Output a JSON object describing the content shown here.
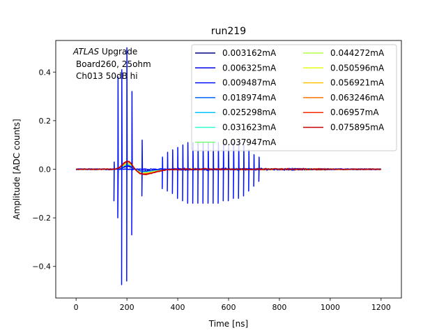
{
  "chart_data": {
    "type": "line",
    "title": "run219",
    "xlabel": "Time [ns]",
    "ylabel": "Amplitude [ADC counts]",
    "xlim": [
      -80,
      1280
    ],
    "ylim": [
      -0.53,
      0.53
    ],
    "xticks": [
      0,
      200,
      400,
      600,
      800,
      1000,
      1200
    ],
    "yticks": [
      -0.4,
      -0.2,
      0.0,
      0.2,
      0.4
    ],
    "xtick_labels": [
      "0",
      "200",
      "400",
      "600",
      "800",
      "1000",
      "1200"
    ],
    "ytick_labels": [
      "−0.4",
      "−0.2",
      "0.0",
      "0.2",
      "0.4"
    ],
    "grid": false,
    "legend_position": "upper-right",
    "legend_columns": 2,
    "annotation": {
      "italic": "ATLAS",
      "rest": " Upgrade",
      "line2": "Board260, 25ohm",
      "line3": "Ch013 50dB hi"
    },
    "spike_train": [
      [
        150,
        0.03,
        -0.13
      ],
      [
        165,
        0.38,
        -0.2
      ],
      [
        180,
        0.41,
        -0.475
      ],
      [
        200,
        0.5,
        -0.46
      ],
      [
        220,
        0.32,
        -0.27
      ],
      [
        260,
        0.12,
        -0.11
      ],
      [
        340,
        0.05,
        -0.08
      ],
      [
        360,
        0.07,
        -0.09
      ],
      [
        380,
        0.08,
        -0.1
      ],
      [
        400,
        0.09,
        -0.12
      ],
      [
        420,
        0.1,
        -0.13
      ],
      [
        440,
        0.11,
        -0.14
      ],
      [
        460,
        0.11,
        -0.14
      ],
      [
        480,
        0.11,
        -0.14
      ],
      [
        500,
        0.11,
        -0.14
      ],
      [
        520,
        0.11,
        -0.14
      ],
      [
        540,
        0.11,
        -0.14
      ],
      [
        560,
        0.11,
        -0.14
      ],
      [
        580,
        0.11,
        -0.13
      ],
      [
        600,
        0.1,
        -0.13
      ],
      [
        620,
        0.11,
        -0.12
      ],
      [
        640,
        0.11,
        -0.12
      ],
      [
        660,
        0.1,
        -0.11
      ],
      [
        680,
        0.08,
        -0.09
      ],
      [
        700,
        0.06,
        -0.07
      ],
      [
        720,
        0.05,
        -0.05
      ]
    ],
    "pulse_shape": {
      "peak_time": 205,
      "peak_amp": 0.03,
      "undershoot_time": 265,
      "undershoot_amp": -0.015
    },
    "series": [
      {
        "name": "0.003162mA",
        "color": "#00007f"
      },
      {
        "name": "0.006325mA",
        "color": "#0000e8"
      },
      {
        "name": "0.009487mA",
        "color": "#0010ff"
      },
      {
        "name": "0.018974mA",
        "color": "#0064ff"
      },
      {
        "name": "0.025298mA",
        "color": "#00c4ff"
      },
      {
        "name": "0.031623mA",
        "color": "#2cffca"
      },
      {
        "name": "0.037947mA",
        "color": "#7dff7a"
      },
      {
        "name": "0.044272mA",
        "color": "#b4ff43"
      },
      {
        "name": "0.050596mA",
        "color": "#e4ff13"
      },
      {
        "name": "0.056921mA",
        "color": "#ffc200"
      },
      {
        "name": "0.063246mA",
        "color": "#ff7300"
      },
      {
        "name": "0.06957mA",
        "color": "#ff2b00"
      },
      {
        "name": "0.075895mA",
        "color": "#c40000"
      }
    ]
  }
}
